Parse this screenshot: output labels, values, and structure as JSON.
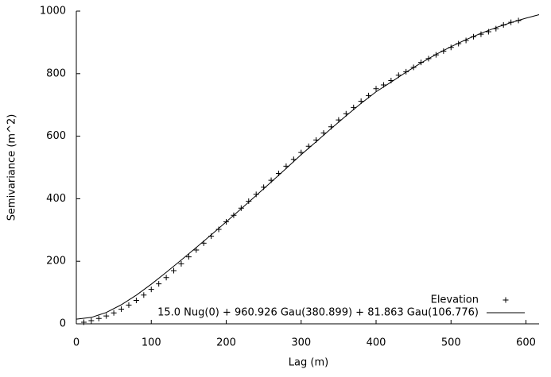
{
  "chart_data": {
    "type": "scatter",
    "xlabel": "Lag (m)",
    "ylabel": "Semivariance (m^2)",
    "xlim": [
      0,
      617.5
    ],
    "ylim": [
      0,
      1000
    ],
    "xticks": [
      0,
      100,
      200,
      300,
      400,
      500,
      600
    ],
    "yticks": [
      0,
      200,
      400,
      600,
      800,
      1000
    ],
    "legend": "lower right",
    "series": [
      {
        "name": "Elevation",
        "type": "scatter",
        "color": "#000000",
        "x": [
          10,
          20,
          30,
          40,
          50,
          60,
          70,
          80,
          90,
          100,
          110,
          120,
          130,
          140,
          150,
          160,
          170,
          180,
          190,
          200,
          210,
          220,
          230,
          240,
          250,
          260,
          270,
          280,
          290,
          300,
          310,
          320,
          330,
          340,
          350,
          360,
          370,
          380,
          390,
          400,
          410,
          420,
          430,
          440,
          450,
          460,
          470,
          480,
          490,
          500,
          510,
          520,
          530,
          540,
          550,
          560,
          570,
          580,
          590
        ],
        "values": [
          5,
          10,
          17,
          25,
          35,
          47,
          60,
          75,
          92,
          110,
          128,
          148,
          170,
          192,
          214,
          236,
          258,
          280,
          302,
          326,
          347,
          370,
          392,
          414,
          437,
          459,
          481,
          504,
          526,
          548,
          568,
          588,
          610,
          630,
          652,
          672,
          692,
          712,
          730,
          752,
          764,
          778,
          795,
          806,
          820,
          836,
          848,
          860,
          872,
          884,
          896,
          906,
          918,
          926,
          934,
          944,
          956,
          964,
          970
        ]
      },
      {
        "name": "15.0 Nug(0) + 960.926 Gau(380.899) + 81.863 Gau(106.776)",
        "type": "line",
        "color": "#000000",
        "x": [
          0,
          20,
          40,
          60,
          80,
          100,
          120,
          140,
          160,
          180,
          200,
          220,
          240,
          260,
          280,
          300,
          320,
          340,
          360,
          380,
          400,
          420,
          440,
          460,
          480,
          500,
          520,
          540,
          560,
          580,
          600,
          617.5
        ],
        "values": [
          15,
          20.5,
          36.3,
          60.9,
          91.6,
          126.8,
          164.7,
          204,
          244.1,
          284.6,
          326,
          367.9,
          410.5,
          453.5,
          496.7,
          541,
          582.2,
          624.3,
          665.4,
          704.9,
          742.1,
          773,
          804.8,
          834.3,
          861.5,
          886.3,
          908.8,
          929.1,
          947.2,
          963.3,
          977.5,
          988.5
        ]
      }
    ]
  }
}
